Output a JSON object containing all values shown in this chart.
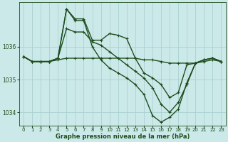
{
  "title": "Graphe pression niveau de la mer (hPa)",
  "background_color": "#cce9e9",
  "grid_color": "#aad0d0",
  "line_color": "#1e4d1e",
  "text_color": "#1e4d1e",
  "ylim": [
    1033.6,
    1037.35
  ],
  "yticks": [
    1034,
    1035,
    1036
  ],
  "xlim": [
    -0.5,
    23.5
  ],
  "xticks": [
    0,
    1,
    2,
    3,
    4,
    5,
    6,
    7,
    8,
    9,
    10,
    11,
    12,
    13,
    14,
    15,
    16,
    17,
    18,
    19,
    20,
    21,
    22,
    23
  ],
  "series": [
    {
      "x": [
        0,
        1,
        2,
        3,
        4,
        5,
        6,
        7,
        8,
        9,
        10,
        11,
        12,
        13,
        14,
        15,
        16,
        17,
        18,
        19,
        20,
        21,
        22,
        23
      ],
      "y": [
        1035.7,
        1035.55,
        1035.55,
        1035.55,
        1035.65,
        1037.15,
        1036.85,
        1036.85,
        1036.2,
        1036.2,
        1036.4,
        1036.35,
        1036.25,
        1035.65,
        1035.2,
        1035.05,
        1034.85,
        1034.45,
        1034.6,
        1035.45,
        1035.5,
        1035.6,
        1035.65,
        1035.55
      ],
      "marker": "+",
      "markersize": 3.5,
      "linewidth": 1.0
    },
    {
      "x": [
        0,
        1,
        2,
        3,
        4,
        5,
        6,
        7,
        8,
        9,
        10,
        11,
        12,
        13,
        14,
        15,
        16,
        17,
        18,
        19,
        20,
        21,
        22,
        23
      ],
      "y": [
        1035.7,
        1035.55,
        1035.55,
        1035.55,
        1035.65,
        1037.15,
        1036.8,
        1036.8,
        1036.0,
        1035.6,
        1035.35,
        1035.2,
        1035.05,
        1034.85,
        1034.55,
        1033.9,
        1033.7,
        1033.85,
        1034.1,
        1034.9,
        1035.5,
        1035.6,
        1035.65,
        1035.55
      ],
      "marker": "+",
      "markersize": 3.5,
      "linewidth": 1.0
    },
    {
      "x": [
        0,
        1,
        2,
        3,
        4,
        5,
        6,
        7,
        8,
        9,
        10,
        11,
        12,
        13,
        14,
        15,
        16,
        17,
        18,
        19,
        20,
        21,
        22,
        23
      ],
      "y": [
        1035.7,
        1035.55,
        1035.55,
        1035.55,
        1035.65,
        1036.55,
        1036.45,
        1036.45,
        1036.15,
        1036.05,
        1035.85,
        1035.65,
        1035.45,
        1035.25,
        1035.05,
        1034.75,
        1034.25,
        1034.0,
        1034.3,
        1034.85,
        1035.5,
        1035.6,
        1035.65,
        1035.55
      ],
      "marker": "+",
      "markersize": 3.5,
      "linewidth": 1.0
    },
    {
      "x": [
        0,
        1,
        2,
        3,
        4,
        5,
        6,
        7,
        8,
        9,
        10,
        11,
        12,
        13,
        14,
        15,
        16,
        17,
        18,
        19,
        20,
        21,
        22,
        23
      ],
      "y": [
        1035.7,
        1035.55,
        1035.55,
        1035.55,
        1035.6,
        1035.65,
        1035.65,
        1035.65,
        1035.65,
        1035.65,
        1035.65,
        1035.65,
        1035.65,
        1035.65,
        1035.6,
        1035.6,
        1035.55,
        1035.5,
        1035.5,
        1035.5,
        1035.5,
        1035.55,
        1035.6,
        1035.55
      ],
      "marker": "+",
      "markersize": 3.5,
      "linewidth": 1.0
    }
  ]
}
